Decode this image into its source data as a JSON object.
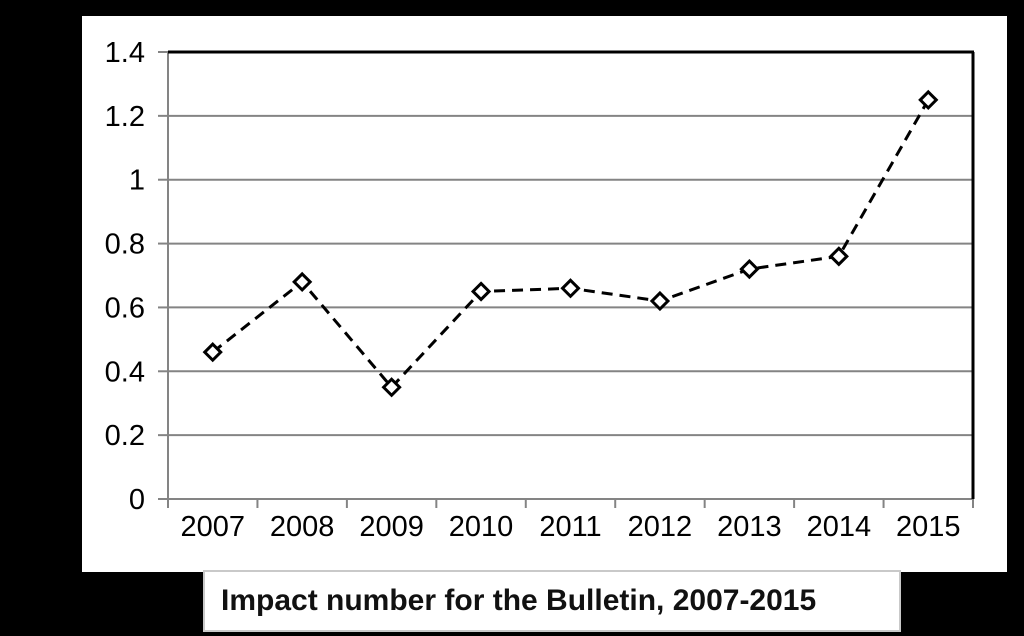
{
  "chart_data": {
    "type": "line",
    "title": "Impact number for the Bulletin, 2007-2015",
    "categories": [
      "2007",
      "2008",
      "2009",
      "2010",
      "2011",
      "2012",
      "2013",
      "2014",
      "2015"
    ],
    "series": [
      {
        "name": "Impact number",
        "values": [
          0.46,
          0.68,
          0.35,
          0.65,
          0.66,
          0.62,
          0.72,
          0.76,
          1.25
        ],
        "line_style": "dashed",
        "marker": "open-diamond"
      }
    ],
    "xlabel": "",
    "ylabel": "",
    "ylim": [
      0,
      1.4
    ],
    "ytick_values": [
      0,
      0.2,
      0.4,
      0.6,
      0.8,
      1,
      1.2,
      1.4
    ],
    "ytick_labels": [
      "0",
      "0.2",
      "0.4",
      "0.6",
      "0.8",
      "1",
      "1.2",
      "1.4"
    ],
    "grid": true,
    "legend": "none",
    "colors": {
      "background": "#000000",
      "panel": "#ffffff",
      "grid": "#848484",
      "axis": "#848484",
      "plot_border": "#000000",
      "series_line": "#000000",
      "marker_fill": "#ffffff",
      "marker_stroke": "#000000",
      "tick_text": "#000000",
      "caption_border": "#c9c9c9",
      "caption_text": "#111111"
    }
  }
}
